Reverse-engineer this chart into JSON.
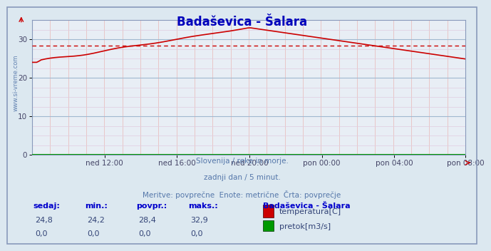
{
  "title": "Badaševica - Šalara",
  "background_color": "#dce8f0",
  "plot_bg_color": "#e8eef5",
  "grid_color_major_h": "#a0b8d0",
  "grid_color_minor_v": "#e8c0c0",
  "grid_color_minor_h": "#e0cce0",
  "temp_color": "#cc0000",
  "flow_color": "#009900",
  "avg_line_color": "#cc0000",
  "avg_value": 28.4,
  "x_labels": [
    "ned 12:00",
    "ned 16:00",
    "ned 20:00",
    "pon 00:00",
    "pon 04:00",
    "pon 08:00"
  ],
  "ylim": [
    0,
    35
  ],
  "yticks": [
    0,
    10,
    20,
    30
  ],
  "subtitle_line1": "Slovenija / reke in morje.",
  "subtitle_line2": "zadnji dan / 5 minut.",
  "subtitle_line3": "Meritve: povprečne  Enote: metrične  Črta: povprečje",
  "watermark": "www.si-vreme.com",
  "table_headers": [
    "sedaj:",
    "min.:",
    "povpr.:",
    "maks.:"
  ],
  "table_values_temp": [
    "24,8",
    "24,2",
    "28,4",
    "32,9"
  ],
  "table_values_flow": [
    "0,0",
    "0,0",
    "0,0",
    "0,0"
  ],
  "legend_station": "Badaševica - Šalara",
  "legend_temp": "temperatura[C]",
  "legend_flow": "pretok[m3/s]",
  "n_points": 288,
  "n_xticks": 6,
  "title_color": "#0000bb",
  "label_color": "#5577aa",
  "table_header_color": "#0000cc",
  "table_value_color": "#334477"
}
